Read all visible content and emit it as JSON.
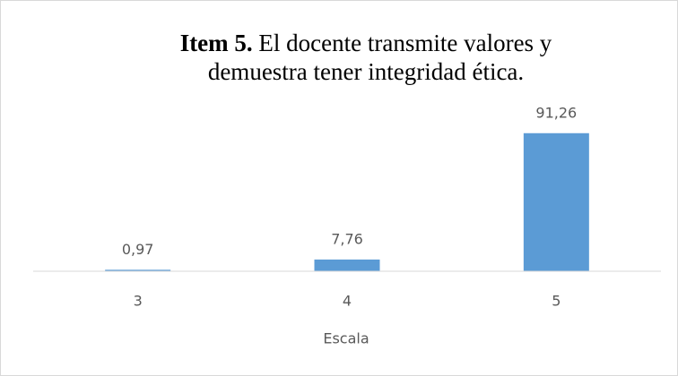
{
  "chart_data": {
    "type": "bar",
    "title": {
      "bold": "Item 5.",
      "text": "El docente transmite valores y demuestra tener integridad ética."
    },
    "categories": [
      "3",
      "4",
      "5"
    ],
    "values": [
      0.97,
      7.76,
      91.26
    ],
    "value_labels": [
      "0,97",
      "7,76",
      "91,26"
    ],
    "color": "#5b9bd5",
    "xlabel": "Escala",
    "ylim": [
      0,
      100
    ]
  }
}
